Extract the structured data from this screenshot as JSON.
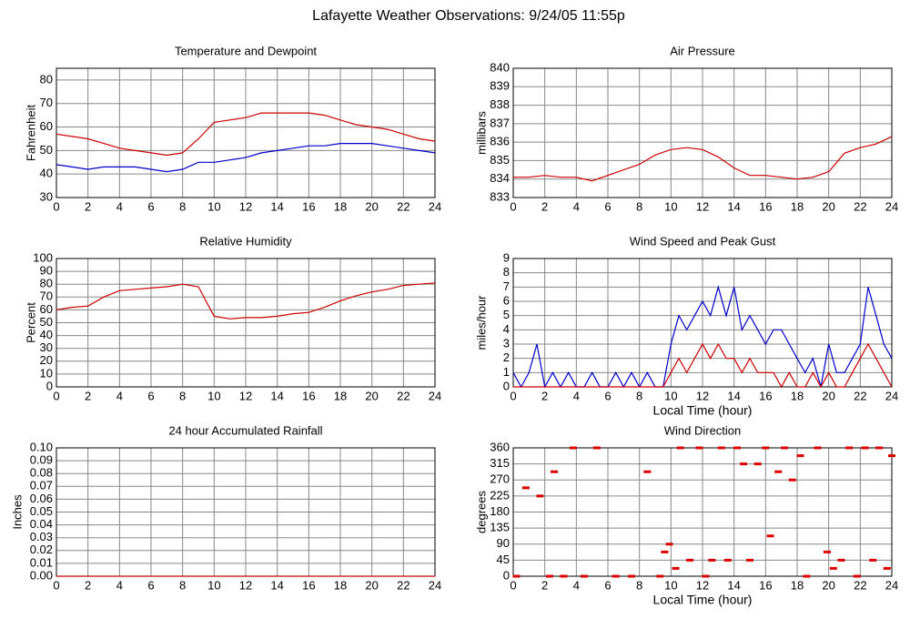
{
  "title": "Lafayette Weather Observations: 9/24/05 11:55p",
  "chart_data": [
    {
      "type": "line",
      "title": "Temperature and Dewpoint",
      "ylabel": "Fahrenheit",
      "x": [
        0,
        1,
        2,
        3,
        4,
        5,
        6,
        7,
        8,
        9,
        10,
        11,
        12,
        13,
        14,
        15,
        16,
        17,
        18,
        19,
        20,
        21,
        22,
        23,
        24
      ],
      "series": [
        {
          "color": "#cc0000",
          "values": [
            57,
            56,
            55,
            53,
            51,
            50,
            49,
            48,
            49,
            55,
            62,
            63,
            64,
            66,
            66,
            66,
            66,
            65,
            63,
            61,
            60,
            59,
            57,
            55,
            54
          ]
        },
        {
          "color": "#0000cc",
          "values": [
            44,
            43,
            42,
            43,
            43,
            43,
            42,
            41,
            42,
            45,
            45,
            46,
            47,
            49,
            50,
            51,
            52,
            52,
            53,
            53,
            53,
            52,
            51,
            50,
            49
          ]
        }
      ],
      "xlim": [
        0,
        24
      ],
      "xticks": [
        0,
        2,
        4,
        6,
        8,
        10,
        12,
        14,
        16,
        18,
        20,
        22,
        24
      ],
      "ylim": [
        30,
        85
      ],
      "yticks": [
        30,
        40,
        50,
        60,
        70,
        80
      ],
      "grid": true
    },
    {
      "type": "line",
      "title": "Air Pressure",
      "ylabel": "millibars",
      "x": [
        0,
        1,
        2,
        3,
        4,
        5,
        6,
        7,
        8,
        9,
        10,
        11,
        12,
        13,
        14,
        15,
        16,
        17,
        18,
        19,
        20,
        21,
        22,
        23,
        24
      ],
      "series": [
        {
          "color": "#cc0000",
          "values": [
            834.1,
            834.1,
            834.2,
            834.1,
            834.1,
            833.9,
            834.2,
            834.5,
            834.8,
            835.3,
            835.6,
            835.7,
            835.6,
            835.2,
            834.6,
            834.2,
            834.2,
            834.1,
            834.0,
            834.1,
            834.4,
            835.4,
            835.7,
            835.9,
            836.3
          ]
        }
      ],
      "xlim": [
        0,
        24
      ],
      "xticks": [
        0,
        2,
        4,
        6,
        8,
        10,
        12,
        14,
        16,
        18,
        20,
        22,
        24
      ],
      "ylim": [
        833,
        840
      ],
      "yticks": [
        833,
        834,
        835,
        836,
        837,
        838,
        839,
        840
      ],
      "grid": true
    },
    {
      "type": "line",
      "title": "Relative Humidity",
      "ylabel": "Percent",
      "x": [
        0,
        1,
        2,
        3,
        4,
        5,
        6,
        7,
        8,
        9,
        10,
        11,
        12,
        13,
        14,
        15,
        16,
        17,
        18,
        19,
        20,
        21,
        22,
        23,
        24
      ],
      "series": [
        {
          "color": "#cc0000",
          "values": [
            60,
            62,
            63,
            70,
            75,
            76,
            77,
            78,
            80,
            78,
            55,
            53,
            54,
            54,
            55,
            57,
            58,
            62,
            67,
            71,
            74,
            76,
            79,
            80,
            81
          ]
        }
      ],
      "xlim": [
        0,
        24
      ],
      "xticks": [
        0,
        2,
        4,
        6,
        8,
        10,
        12,
        14,
        16,
        18,
        20,
        22,
        24
      ],
      "ylim": [
        0,
        100
      ],
      "yticks": [
        0,
        10,
        20,
        30,
        40,
        50,
        60,
        70,
        80,
        90,
        100
      ],
      "grid": true
    },
    {
      "type": "line",
      "title": "Wind Speed and Peak Gust",
      "ylabel": "miles/hour",
      "xlabel": "Local Time (hour)",
      "x": [
        0,
        0.5,
        1,
        1.5,
        2,
        2.5,
        3,
        3.5,
        4,
        4.5,
        5,
        5.5,
        6,
        6.5,
        7,
        7.5,
        8,
        8.5,
        9,
        9.5,
        10,
        10.5,
        11,
        11.5,
        12,
        12.5,
        13,
        13.5,
        14,
        14.5,
        15,
        15.5,
        16,
        16.5,
        17,
        17.5,
        18,
        18.5,
        19,
        19.5,
        20,
        20.5,
        21,
        21.5,
        22,
        22.5,
        23,
        23.5,
        24
      ],
      "series": [
        {
          "color": "#0000cc",
          "values": [
            1,
            0,
            1,
            3,
            0,
            1,
            0,
            1,
            0,
            0,
            1,
            0,
            0,
            1,
            0,
            1,
            0,
            1,
            0,
            0,
            3,
            5,
            4,
            5,
            6,
            5,
            7,
            5,
            7,
            4,
            5,
            4,
            3,
            4,
            4,
            3,
            2,
            1,
            2,
            0,
            3,
            1,
            1,
            2,
            3,
            7,
            5,
            3,
            2
          ]
        },
        {
          "color": "#cc0000",
          "values": [
            0,
            0,
            0,
            0,
            0,
            0,
            0,
            0,
            0,
            0,
            0,
            0,
            0,
            0,
            0,
            0,
            0,
            0,
            0,
            0,
            1,
            2,
            1,
            2,
            3,
            2,
            3,
            2,
            2,
            1,
            2,
            1,
            1,
            1,
            0,
            1,
            0,
            0,
            1,
            0,
            1,
            0,
            0,
            1,
            2,
            3,
            2,
            1,
            0
          ]
        }
      ],
      "xlim": [
        0,
        24
      ],
      "xticks": [
        0,
        2,
        4,
        6,
        8,
        10,
        12,
        14,
        16,
        18,
        20,
        22,
        24
      ],
      "ylim": [
        0,
        9
      ],
      "yticks": [
        0,
        1,
        2,
        3,
        4,
        5,
        6,
        7,
        8,
        9
      ],
      "grid": true
    },
    {
      "type": "line",
      "title": "24 hour Accumulated Rainfall",
      "ylabel": "Inches",
      "x": [
        0,
        24
      ],
      "series": [
        {
          "color": "#cc0000",
          "values": [
            0,
            0
          ]
        }
      ],
      "xlim": [
        0,
        24
      ],
      "xticks": [
        0,
        2,
        4,
        6,
        8,
        10,
        12,
        14,
        16,
        18,
        20,
        22,
        24
      ],
      "ylim": [
        0,
        0.1
      ],
      "yticks": [
        {
          "value": 0,
          "label": "0.00"
        },
        {
          "value": 0.01,
          "label": "0.01"
        },
        {
          "value": 0.02,
          "label": "0.02"
        },
        {
          "value": 0.03,
          "label": "0.03"
        },
        {
          "value": 0.04,
          "label": "0.04"
        },
        {
          "value": 0.05,
          "label": "0.05"
        },
        {
          "value": 0.06,
          "label": "0.06"
        },
        {
          "value": 0.07,
          "label": "0.07"
        },
        {
          "value": 0.08,
          "label": "0.08"
        },
        {
          "value": 0.09,
          "label": "0.09"
        },
        {
          "value": 0.1,
          "label": "0.10"
        }
      ],
      "grid": true
    },
    {
      "type": "scatter",
      "title": "Wind Direction",
      "ylabel": "degrees",
      "xlabel": "Local Time (hour)",
      "x": [
        0.2,
        0.8,
        1.7,
        2.3,
        2.6,
        3.2,
        3.8,
        4.5,
        5.3,
        6.5,
        7.5,
        8.5,
        9.3,
        9.6,
        9.9,
        10.3,
        10.6,
        11.2,
        11.8,
        12.2,
        12.6,
        13.2,
        13.6,
        14.2,
        14.6,
        15.0,
        15.5,
        16.0,
        16.3,
        16.8,
        17.2,
        17.7,
        18.2,
        18.6,
        19.3,
        19.9,
        20.3,
        20.8,
        21.3,
        21.8,
        22.3,
        22.8,
        23.2,
        23.7,
        24.0
      ],
      "series": [
        {
          "color": "#dd0000",
          "values": [
            0,
            248,
            225,
            0,
            293,
            0,
            360,
            0,
            360,
            0,
            0,
            293,
            0,
            68,
            90,
            22,
            360,
            45,
            360,
            0,
            45,
            360,
            45,
            360,
            315,
            45,
            315,
            360,
            113,
            293,
            360,
            270,
            338,
            0,
            360,
            68,
            22,
            45,
            360,
            0,
            360,
            45,
            360,
            22,
            338
          ]
        }
      ],
      "xlim": [
        0,
        24
      ],
      "xticks": [
        0,
        2,
        4,
        6,
        8,
        10,
        12,
        14,
        16,
        18,
        20,
        22,
        24
      ],
      "ylim": [
        0,
        360
      ],
      "yticks": [
        0,
        45,
        90,
        135,
        180,
        225,
        270,
        315,
        360
      ],
      "grid": true
    }
  ]
}
